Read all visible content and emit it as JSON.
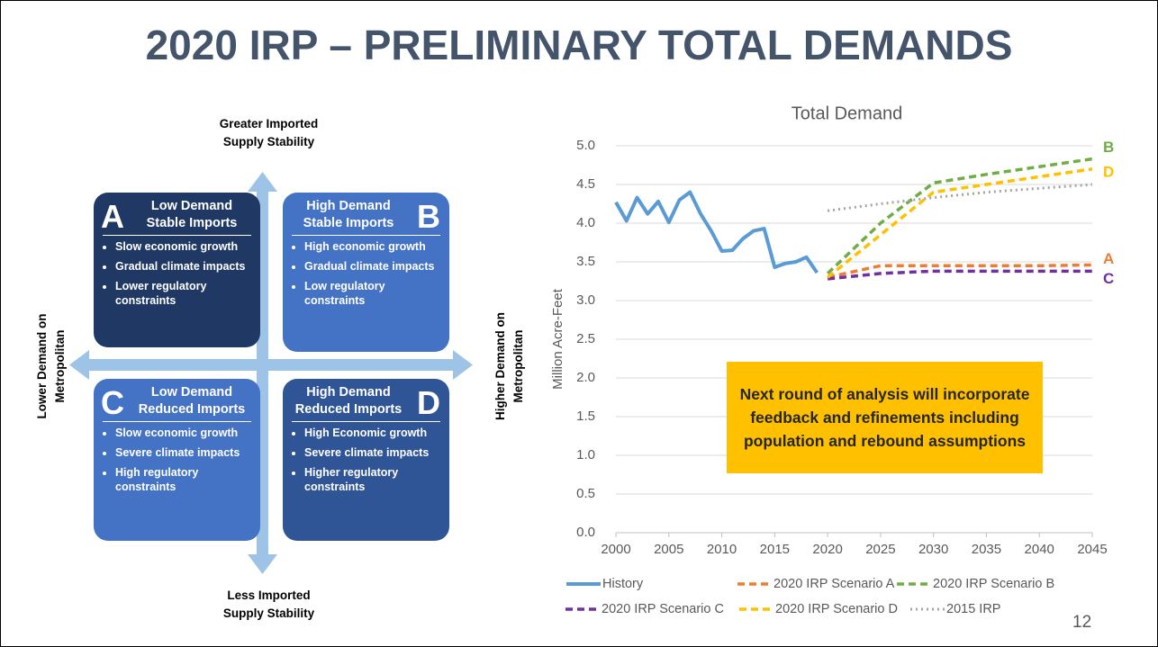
{
  "title": "2020 IRP – PRELIMINARY TOTAL DEMANDS",
  "page_number": "12",
  "diagram": {
    "top_label": [
      "Greater Imported",
      "Supply Stability"
    ],
    "bottom_label": [
      "Less Imported",
      "Supply Stability"
    ],
    "left_label": [
      "Lower Demand on",
      "Metropolitan"
    ],
    "right_label": [
      "Higher Demand on",
      "Metropolitan"
    ],
    "quadrants": [
      {
        "letter": "A",
        "heading": [
          "Low Demand",
          "Stable Imports"
        ],
        "bullets": [
          "Slow economic growth",
          "Gradual climate impacts",
          "Lower regulatory constraints"
        ]
      },
      {
        "letter": "B",
        "heading": [
          "High Demand",
          "Stable Imports"
        ],
        "bullets": [
          "High economic growth",
          "Gradual climate impacts",
          "Low regulatory constraints"
        ]
      },
      {
        "letter": "C",
        "heading": [
          "Low Demand",
          "Reduced Imports"
        ],
        "bullets": [
          "Slow economic growth",
          "Severe climate impacts",
          "High regulatory constraints"
        ]
      },
      {
        "letter": "D",
        "heading": [
          "High Demand",
          "Reduced Imports"
        ],
        "bullets": [
          "High Economic growth",
          "Severe climate impacts",
          "Higher regulatory constraints"
        ]
      }
    ]
  },
  "annotation": "Next round of analysis will incorporate feedback and refinements including population and rebound assumptions",
  "chart_data": {
    "type": "line",
    "title": "Total Demand",
    "y_label": "Million Acre-Feet",
    "x": [
      2000,
      2001,
      2002,
      2003,
      2004,
      2005,
      2006,
      2007,
      2008,
      2009,
      2010,
      2011,
      2012,
      2013,
      2014,
      2015,
      2016,
      2017,
      2018,
      2019,
      2020,
      2025,
      2030,
      2035,
      2040,
      2045
    ],
    "xlim": [
      2000,
      2045
    ],
    "xticks": [
      2000,
      2005,
      2010,
      2015,
      2020,
      2025,
      2030,
      2035,
      2040,
      2045
    ],
    "ylim": [
      0,
      5
    ],
    "yticks": [
      {
        "value": 0,
        "label": "0.0"
      },
      0.5,
      {
        "value": 1,
        "label": "1.0"
      },
      1.5,
      {
        "value": 2,
        "label": "2.0"
      },
      2.5,
      {
        "value": 3,
        "label": "3.0"
      },
      3.5,
      {
        "value": 4,
        "label": "4.0"
      },
      4.5,
      {
        "value": 5,
        "label": "5.0"
      }
    ],
    "grid": true,
    "legend": "bottom",
    "series": [
      {
        "name": "History",
        "color": "#5b9bd5",
        "style": "solid",
        "values": [
          4.27,
          4.03,
          4.33,
          4.12,
          4.28,
          4.01,
          4.3,
          4.4,
          4.12,
          3.9,
          3.64,
          3.65,
          3.8,
          3.9,
          3.93,
          3.43,
          3.48,
          3.5,
          3.56,
          3.36,
          null,
          null,
          null,
          null,
          null,
          null
        ]
      },
      {
        "name": "2020 IRP Scenario A",
        "label": "A",
        "color": "#ed7d31",
        "style": "dash",
        "values": [
          null,
          null,
          null,
          null,
          null,
          null,
          null,
          null,
          null,
          null,
          null,
          null,
          null,
          null,
          null,
          null,
          null,
          null,
          null,
          null,
          3.3,
          3.45,
          3.45,
          3.45,
          3.45,
          3.46
        ]
      },
      {
        "name": "2020 IRP Scenario B",
        "label": "B",
        "color": "#70ad47",
        "style": "dash",
        "values": [
          null,
          null,
          null,
          null,
          null,
          null,
          null,
          null,
          null,
          null,
          null,
          null,
          null,
          null,
          null,
          null,
          null,
          null,
          null,
          null,
          3.35,
          4.0,
          4.52,
          4.63,
          4.73,
          4.83
        ]
      },
      {
        "name": "2020 IRP Scenario C",
        "label": "C",
        "color": "#7030a0",
        "style": "dash",
        "values": [
          null,
          null,
          null,
          null,
          null,
          null,
          null,
          null,
          null,
          null,
          null,
          null,
          null,
          null,
          null,
          null,
          null,
          null,
          null,
          null,
          3.28,
          3.35,
          3.38,
          3.38,
          3.38,
          3.38
        ]
      },
      {
        "name": "2020 IRP Scenario D",
        "label": "D",
        "color": "#ffc000",
        "style": "dash",
        "values": [
          null,
          null,
          null,
          null,
          null,
          null,
          null,
          null,
          null,
          null,
          null,
          null,
          null,
          null,
          null,
          null,
          null,
          null,
          null,
          null,
          3.3,
          3.85,
          4.4,
          4.5,
          4.6,
          4.7
        ]
      },
      {
        "name": "2015 IRP",
        "color": "#a5a5a5",
        "style": "dot",
        "values": [
          null,
          null,
          null,
          null,
          null,
          null,
          null,
          null,
          null,
          null,
          null,
          null,
          null,
          null,
          null,
          null,
          null,
          null,
          null,
          null,
          4.16,
          4.25,
          4.33,
          4.4,
          4.45,
          4.5
        ]
      }
    ]
  }
}
